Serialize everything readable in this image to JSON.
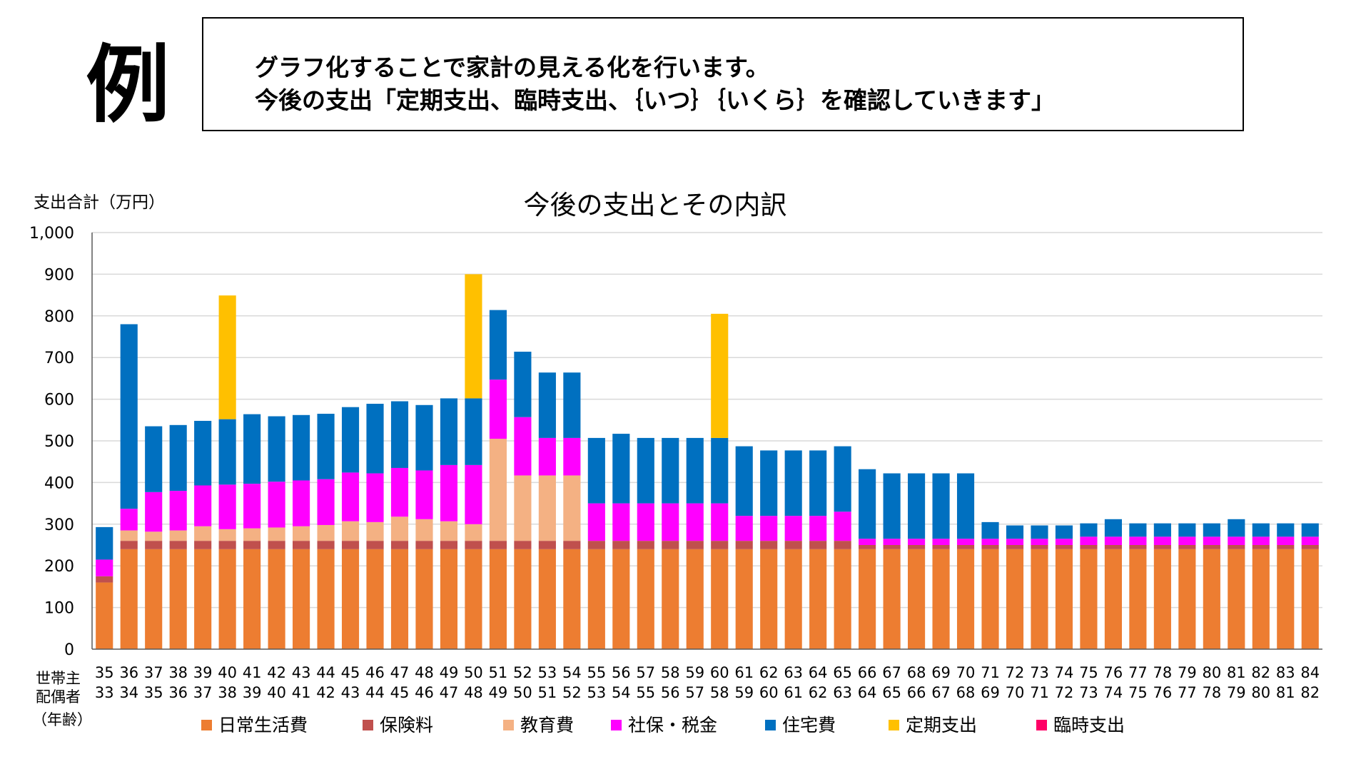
{
  "header": {
    "big_label": "例",
    "note_line_1": "グラフ化することで家計の見える化を行います。",
    "note_line_2": "今後の支出「定期支出、臨時支出、｛いつ｝｛いくら｝を確認していきます」"
  },
  "chart_data": {
    "type": "bar",
    "stacked": true,
    "title": "今後の支出とその内訳",
    "ylabel": "支出合計（万円）",
    "row_labels": [
      "世帯主",
      "配偶者",
      "（年齢）"
    ],
    "ylim": [
      0,
      1000
    ],
    "yticks": [
      "0",
      "100",
      "200",
      "300",
      "400",
      "500",
      "600",
      "700",
      "800",
      "900",
      "1,000"
    ],
    "grid": true,
    "legend_position": "bottom",
    "categories": [
      "35",
      "36",
      "37",
      "38",
      "39",
      "40",
      "41",
      "42",
      "43",
      "44",
      "45",
      "46",
      "47",
      "48",
      "49",
      "50",
      "51",
      "52",
      "53",
      "54",
      "55",
      "56",
      "57",
      "58",
      "59",
      "60",
      "61",
      "62",
      "63",
      "64",
      "65",
      "66",
      "67",
      "68",
      "69",
      "70",
      "71",
      "72",
      "73",
      "74",
      "75",
      "76",
      "77",
      "78",
      "79",
      "80",
      "81",
      "82",
      "83",
      "84"
    ],
    "spouse_ages": [
      "33",
      "34",
      "35",
      "36",
      "37",
      "38",
      "39",
      "40",
      "41",
      "42",
      "43",
      "44",
      "45",
      "46",
      "47",
      "48",
      "49",
      "50",
      "51",
      "52",
      "53",
      "54",
      "55",
      "56",
      "57",
      "58",
      "59",
      "60",
      "61",
      "62",
      "63",
      "64",
      "65",
      "66",
      "67",
      "68",
      "69",
      "70",
      "71",
      "72",
      "73",
      "74",
      "75",
      "76",
      "77",
      "78",
      "79",
      "80",
      "81",
      "82"
    ],
    "series": [
      {
        "name": "日常生活費",
        "color": "#ED7D31",
        "values": [
          160,
          240,
          240,
          240,
          240,
          240,
          240,
          240,
          240,
          240,
          240,
          240,
          240,
          240,
          240,
          240,
          240,
          240,
          240,
          240,
          240,
          240,
          240,
          240,
          240,
          240,
          240,
          240,
          240,
          240,
          240,
          240,
          240,
          240,
          240,
          240,
          240,
          240,
          240,
          240,
          240,
          240,
          240,
          240,
          240,
          240,
          240,
          240,
          240,
          240
        ]
      },
      {
        "name": "保険料",
        "color": "#C0504D",
        "values": [
          15,
          20,
          20,
          20,
          20,
          20,
          20,
          20,
          20,
          20,
          20,
          20,
          20,
          20,
          20,
          20,
          20,
          20,
          20,
          20,
          20,
          20,
          20,
          20,
          20,
          20,
          20,
          20,
          20,
          20,
          20,
          10,
          10,
          10,
          10,
          10,
          10,
          10,
          10,
          10,
          10,
          10,
          10,
          10,
          10,
          10,
          10,
          10,
          10,
          10
        ]
      },
      {
        "name": "教育費",
        "color": "#F4B183",
        "values": [
          0,
          25,
          22,
          25,
          35,
          28,
          30,
          32,
          35,
          38,
          47,
          45,
          58,
          52,
          47,
          40,
          245,
          157,
          157,
          157,
          0,
          0,
          0,
          0,
          0,
          0,
          0,
          0,
          0,
          0,
          0,
          0,
          0,
          0,
          0,
          0,
          0,
          0,
          0,
          0,
          0,
          0,
          0,
          0,
          0,
          0,
          0,
          0,
          0,
          0
        ]
      },
      {
        "name": "社保・税金",
        "color": "#FF00FF",
        "values": [
          40,
          52,
          95,
          95,
          98,
          107,
          107,
          110,
          110,
          110,
          117,
          117,
          117,
          117,
          135,
          142,
          142,
          140,
          90,
          90,
          90,
          90,
          90,
          90,
          90,
          90,
          60,
          60,
          60,
          60,
          70,
          15,
          15,
          15,
          15,
          15,
          15,
          15,
          15,
          15,
          20,
          20,
          20,
          20,
          20,
          20,
          20,
          20,
          20,
          20
        ]
      },
      {
        "name": "住宅費",
        "color": "#0070C0",
        "values": [
          78,
          443,
          158,
          158,
          155,
          157,
          167,
          157,
          157,
          157,
          157,
          167,
          160,
          157,
          160,
          160,
          167,
          157,
          157,
          157,
          157,
          167,
          157,
          157,
          157,
          157,
          167,
          157,
          157,
          157,
          157,
          167,
          157,
          157,
          157,
          157,
          40,
          32,
          32,
          32,
          32,
          42,
          32,
          32,
          32,
          32,
          42,
          32,
          32,
          32
        ]
      },
      {
        "name": "定期支出",
        "color": "#FFC000",
        "values": [
          0,
          0,
          0,
          0,
          0,
          297,
          0,
          0,
          0,
          0,
          0,
          0,
          0,
          0,
          0,
          298,
          0,
          0,
          0,
          0,
          0,
          0,
          0,
          0,
          0,
          298,
          0,
          0,
          0,
          0,
          0,
          0,
          0,
          0,
          0,
          0,
          0,
          0,
          0,
          0,
          0,
          0,
          0,
          0,
          0,
          0,
          0,
          0,
          0,
          0
        ]
      },
      {
        "name": "臨時支出",
        "color": "#FF0066",
        "values": [
          0,
          0,
          0,
          0,
          0,
          0,
          0,
          0,
          0,
          0,
          0,
          0,
          0,
          0,
          0,
          0,
          0,
          0,
          0,
          0,
          0,
          0,
          0,
          0,
          0,
          0,
          0,
          0,
          0,
          0,
          0,
          0,
          0,
          0,
          0,
          0,
          0,
          0,
          0,
          0,
          0,
          0,
          0,
          0,
          0,
          0,
          0,
          0,
          0,
          0
        ]
      }
    ]
  }
}
